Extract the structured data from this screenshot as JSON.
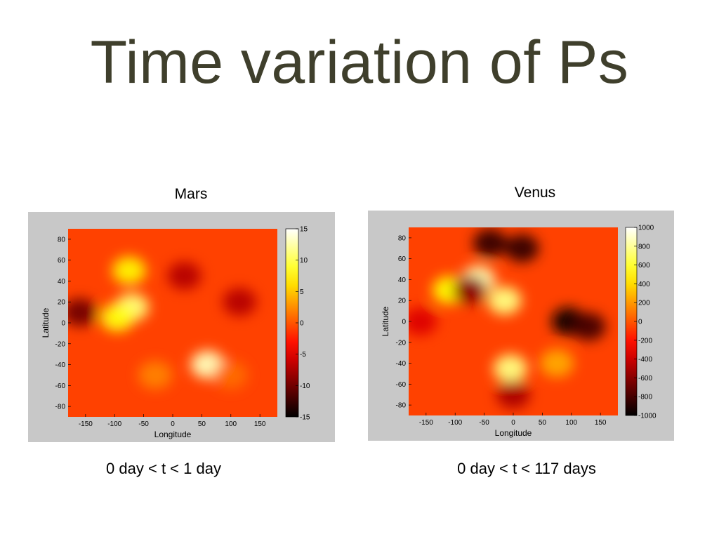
{
  "slide": {
    "title": "Time variation of Ps"
  },
  "chart_data": [
    {
      "type": "heatmap",
      "title": "Mars",
      "caption": "0 day < t < 1 day",
      "xlabel": "Longitude",
      "ylabel": "Latitude",
      "xlim": [
        -180,
        180
      ],
      "ylim": [
        -90,
        90
      ],
      "xticks": [
        -150,
        -100,
        -50,
        0,
        50,
        100,
        150
      ],
      "yticks": [
        80,
        60,
        40,
        20,
        0,
        -20,
        -40,
        -60,
        -80
      ],
      "colorbar": {
        "min": -15,
        "max": 15,
        "ticks": [
          15,
          10,
          5,
          0,
          -5,
          -10,
          -15
        ],
        "colormap": "hot"
      },
      "blobs": [
        {
          "lon": -160,
          "lat": 10,
          "value": -10
        },
        {
          "lon": -70,
          "lat": 15,
          "value": 11
        },
        {
          "lon": -95,
          "lat": 5,
          "value": 8
        },
        {
          "lon": -75,
          "lat": 50,
          "value": 7
        },
        {
          "lon": 60,
          "lat": -40,
          "value": 13
        },
        {
          "lon": 20,
          "lat": 45,
          "value": -7
        },
        {
          "lon": 115,
          "lat": 20,
          "value": -7
        },
        {
          "lon": -30,
          "lat": -50,
          "value": 2
        },
        {
          "lon": 100,
          "lat": -50,
          "value": 1
        }
      ]
    },
    {
      "type": "heatmap",
      "title": "Venus",
      "caption": "0 day < t < 117 days",
      "xlabel": "Longitude",
      "ylabel": "Latitude",
      "xlim": [
        -180,
        180
      ],
      "ylim": [
        -90,
        90
      ],
      "xticks": [
        -150,
        -100,
        -50,
        0,
        50,
        100,
        150
      ],
      "yticks": [
        80,
        60,
        40,
        20,
        0,
        -20,
        -40,
        -60,
        -80
      ],
      "colorbar": {
        "min": -1000,
        "max": 1000,
        "ticks": [
          1000,
          800,
          600,
          400,
          200,
          0,
          -200,
          -400,
          -600,
          -800,
          -1000
        ],
        "colormap": "hot"
      },
      "blobs": [
        {
          "lon": -40,
          "lat": 75,
          "value": -850
        },
        {
          "lon": 15,
          "lat": 70,
          "value": -850
        },
        {
          "lon": -60,
          "lat": 40,
          "value": 850
        },
        {
          "lon": -15,
          "lat": 20,
          "value": 750
        },
        {
          "lon": -110,
          "lat": 30,
          "value": 500
        },
        {
          "lon": -75,
          "lat": 30,
          "value": -600
        },
        {
          "lon": 95,
          "lat": 0,
          "value": -950
        },
        {
          "lon": 130,
          "lat": -5,
          "value": -800
        },
        {
          "lon": -5,
          "lat": -45,
          "value": 750
        },
        {
          "lon": 0,
          "lat": -70,
          "value": -500
        },
        {
          "lon": 75,
          "lat": -40,
          "value": 250
        },
        {
          "lon": -160,
          "lat": 0,
          "value": -350
        }
      ]
    }
  ]
}
